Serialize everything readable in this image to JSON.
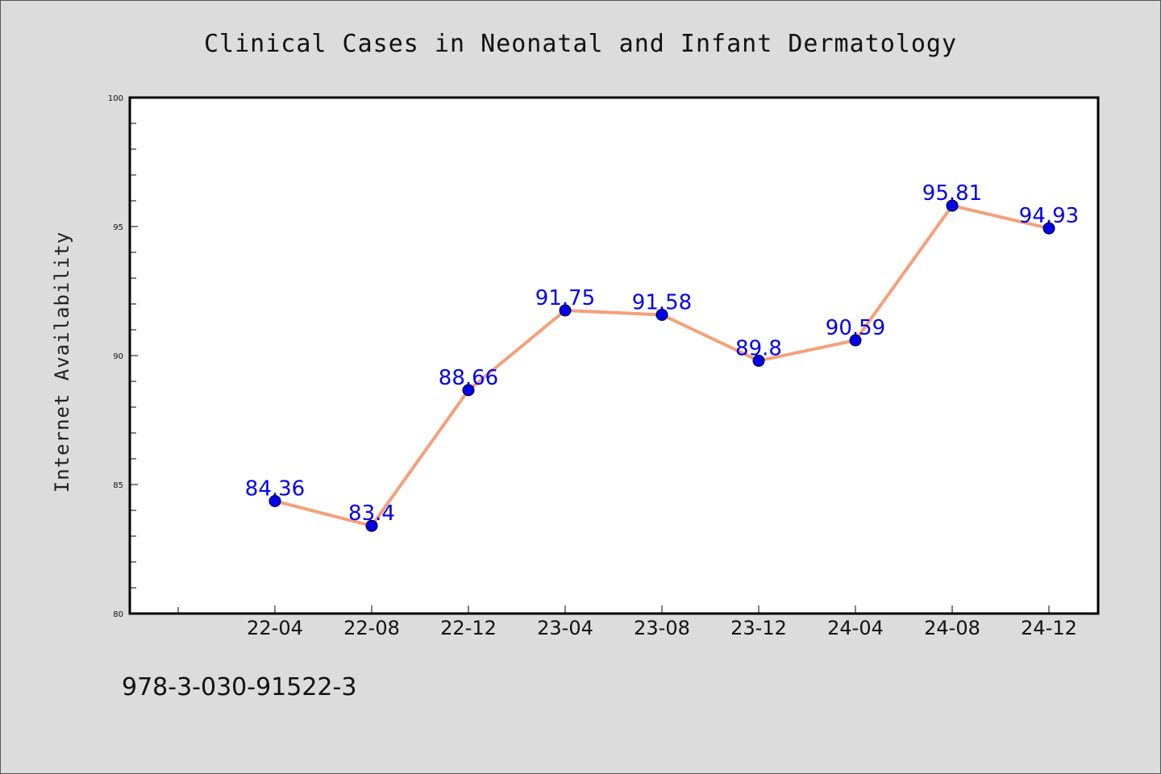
{
  "chart_data": {
    "type": "line",
    "title": "Clinical Cases in Neonatal and Infant Dermatology",
    "ylabel": "Internet Availability",
    "xlabel": "",
    "categories": [
      "22-04",
      "22-08",
      "22-12",
      "23-04",
      "23-08",
      "23-12",
      "24-04",
      "24-08",
      "24-12"
    ],
    "values": [
      84.36,
      83.4,
      88.66,
      91.75,
      91.58,
      89.8,
      90.59,
      95.81,
      94.93
    ],
    "data_labels": [
      "84.36",
      "83.4",
      "88.66",
      "91.75",
      "91.58",
      "89.8",
      "90.59",
      "95.81",
      "94.93"
    ],
    "ylim": [
      80,
      100
    ],
    "yticks": [
      80,
      85,
      90,
      95,
      100
    ],
    "grid": false,
    "line_color": "#f4a07a",
    "marker_color": "#0000ee",
    "label_color": "#0000ee"
  },
  "footer_text": "978-3-030-91522-3"
}
